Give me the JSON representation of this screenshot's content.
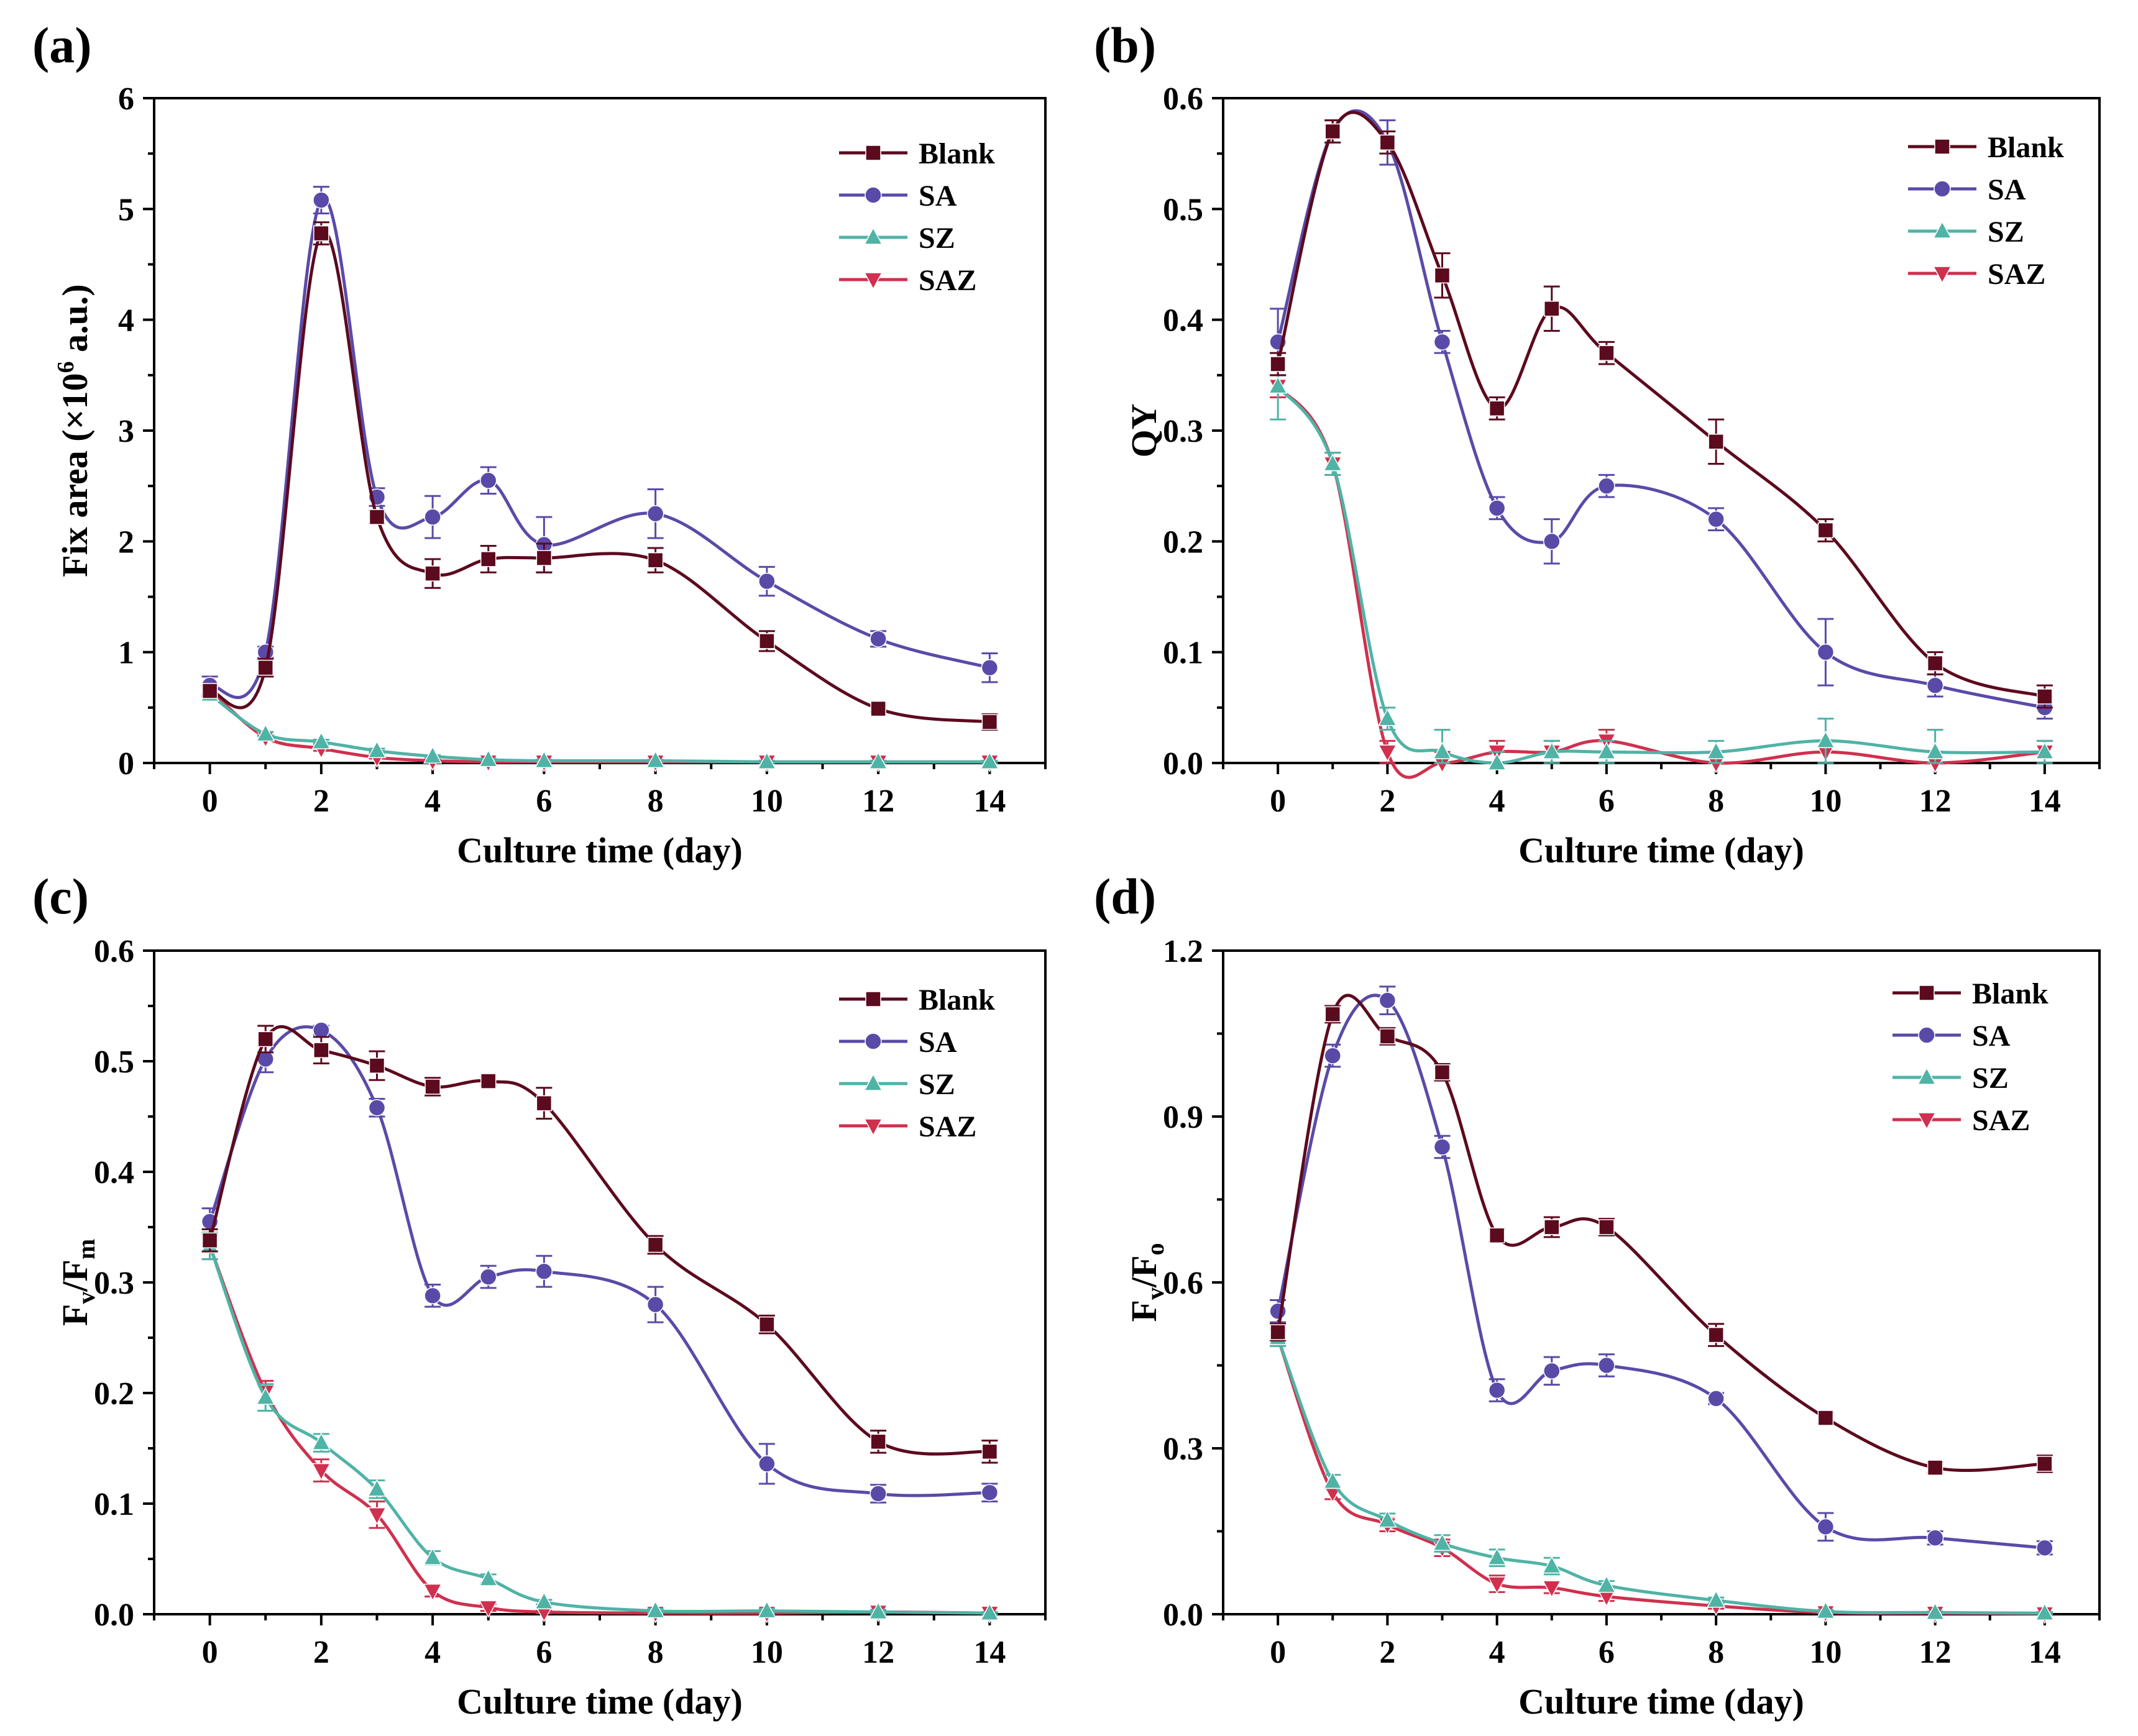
{
  "figure": {
    "colors": {
      "Blank": "#5c0a1e",
      "SA": "#5a4aa8",
      "SZ": "#4fb3a6",
      "SAZ": "#d0304e"
    },
    "markers": {
      "Blank": "square",
      "SA": "circle",
      "SZ": "triangle-up",
      "SAZ": "triangle-down"
    }
  },
  "chart_data": [
    {
      "panel": "(a)",
      "type": "line",
      "xlabel": "Culture time (day)",
      "ylabel_main": "Fix area (×10",
      "ylabel_sup": "6",
      "ylabel_tail": " a.u.)",
      "xlim": [
        -1,
        15
      ],
      "ylim": [
        0,
        6
      ],
      "xticks": [
        0,
        2,
        4,
        6,
        8,
        10,
        12,
        14
      ],
      "yticks": [
        0,
        1,
        2,
        3,
        4,
        5,
        6
      ],
      "ytick_labels": [
        "0",
        "1",
        "2",
        "3",
        "4",
        "5",
        "6"
      ],
      "x": [
        0,
        1,
        2,
        3,
        4,
        5,
        6,
        8,
        10,
        12,
        14
      ],
      "legend": [
        "Blank",
        "SA",
        "SZ",
        "SAZ"
      ],
      "series": [
        {
          "name": "Blank",
          "values": [
            0.65,
            0.86,
            4.78,
            2.22,
            1.71,
            1.84,
            1.85,
            1.83,
            1.1,
            0.49,
            0.37
          ],
          "errors": [
            0.05,
            0.08,
            0.1,
            0.06,
            0.13,
            0.12,
            0.13,
            0.11,
            0.09,
            0.03,
            0.07
          ]
        },
        {
          "name": "SA",
          "values": [
            0.7,
            1.0,
            5.08,
            2.4,
            2.22,
            2.55,
            1.97,
            2.25,
            1.64,
            1.12,
            0.86
          ],
          "errors": [
            0.08,
            0.05,
            0.12,
            0.08,
            0.19,
            0.12,
            0.25,
            0.22,
            0.13,
            0.07,
            0.13
          ]
        },
        {
          "name": "SZ",
          "values": [
            0.62,
            0.26,
            0.19,
            0.11,
            0.06,
            0.03,
            0.02,
            0.02,
            0.01,
            0.01,
            0.01
          ],
          "errors": [
            0.05,
            0.02,
            0.02,
            0.02,
            0.01,
            0.01,
            0.01,
            0.01,
            0.01,
            0.01,
            0.01
          ]
        },
        {
          "name": "SAZ",
          "values": [
            0.66,
            0.23,
            0.13,
            0.05,
            0.02,
            0.01,
            0.01,
            0.01,
            0.01,
            0.01,
            0.01
          ],
          "errors": [
            0.04,
            0.02,
            0.02,
            0.01,
            0.01,
            0.01,
            0.01,
            0.01,
            0.01,
            0.01,
            0.01
          ]
        }
      ]
    },
    {
      "panel": "(b)",
      "type": "line",
      "xlabel": "Culture time (day)",
      "ylabel_main": "QY",
      "ylabel_sup": "",
      "ylabel_tail": "",
      "xlim": [
        -1,
        15
      ],
      "ylim": [
        0,
        0.6
      ],
      "xticks": [
        0,
        2,
        4,
        6,
        8,
        10,
        12,
        14
      ],
      "yticks": [
        0,
        0.1,
        0.2,
        0.3,
        0.4,
        0.5,
        0.6
      ],
      "ytick_labels": [
        "0.0",
        "0.1",
        "0.2",
        "0.3",
        "0.4",
        "0.5",
        "0.6"
      ],
      "x": [
        0,
        1,
        2,
        3,
        4,
        5,
        6,
        8,
        10,
        12,
        14
      ],
      "legend": [
        "Blank",
        "SA",
        "SZ",
        "SAZ"
      ],
      "series": [
        {
          "name": "Blank",
          "values": [
            0.36,
            0.57,
            0.56,
            0.44,
            0.32,
            0.41,
            0.37,
            0.29,
            0.21,
            0.09,
            0.06
          ],
          "errors": [
            0.01,
            0.01,
            0.01,
            0.02,
            0.01,
            0.02,
            0.01,
            0.02,
            0.01,
            0.01,
            0.01
          ]
        },
        {
          "name": "SA",
          "values": [
            0.38,
            0.57,
            0.56,
            0.38,
            0.23,
            0.2,
            0.25,
            0.22,
            0.1,
            0.07,
            0.05
          ],
          "errors": [
            0.03,
            0.01,
            0.02,
            0.01,
            0.01,
            0.02,
            0.01,
            0.01,
            0.03,
            0.01,
            0.01
          ]
        },
        {
          "name": "SZ",
          "values": [
            0.34,
            0.27,
            0.04,
            0.01,
            0.0,
            0.01,
            0.01,
            0.01,
            0.02,
            0.01,
            0.01
          ],
          "errors": [
            0.03,
            0.01,
            0.01,
            0.02,
            0.01,
            0.01,
            0.01,
            0.01,
            0.02,
            0.02,
            0.01
          ]
        },
        {
          "name": "SAZ",
          "values": [
            0.34,
            0.27,
            0.01,
            0.0,
            0.01,
            0.01,
            0.02,
            0.0,
            0.01,
            0.0,
            0.01
          ],
          "errors": [
            0.01,
            0.01,
            0.01,
            0.01,
            0.01,
            0.01,
            0.01,
            0.01,
            0.01,
            0.01,
            0.01
          ]
        }
      ]
    },
    {
      "panel": "(c)",
      "type": "line",
      "xlabel": "Culture time (day)",
      "ylabel_main": "F",
      "ylabel_sub1": "v",
      "ylabel_mid": "/F",
      "ylabel_sub2": "m",
      "xlim": [
        -1,
        15
      ],
      "ylim": [
        0,
        0.6
      ],
      "xticks": [
        0,
        2,
        4,
        6,
        8,
        10,
        12,
        14
      ],
      "yticks": [
        0,
        0.1,
        0.2,
        0.3,
        0.4,
        0.5,
        0.6
      ],
      "ytick_labels": [
        "0.0",
        "0.1",
        "0.2",
        "0.3",
        "0.4",
        "0.5",
        "0.6"
      ],
      "x": [
        0,
        1,
        2,
        3,
        4,
        5,
        6,
        8,
        10,
        12,
        14
      ],
      "legend": [
        "Blank",
        "SA",
        "SZ",
        "SAZ"
      ],
      "series": [
        {
          "name": "Blank",
          "values": [
            0.338,
            0.52,
            0.51,
            0.496,
            0.477,
            0.482,
            0.462,
            0.334,
            0.262,
            0.156,
            0.147
          ],
          "errors": [
            0.01,
            0.012,
            0.012,
            0.013,
            0.008,
            0.004,
            0.014,
            0.008,
            0.008,
            0.01,
            0.01
          ]
        },
        {
          "name": "SA",
          "values": [
            0.355,
            0.502,
            0.528,
            0.458,
            0.288,
            0.305,
            0.31,
            0.28,
            0.136,
            0.109,
            0.11
          ],
          "errors": [
            0.012,
            0.012,
            0.004,
            0.008,
            0.01,
            0.01,
            0.014,
            0.016,
            0.018,
            0.008,
            0.008
          ]
        },
        {
          "name": "SZ",
          "values": [
            0.333,
            0.196,
            0.155,
            0.113,
            0.051,
            0.032,
            0.011,
            0.003,
            0.003,
            0.002,
            0.001
          ],
          "errors": [
            0.012,
            0.012,
            0.008,
            0.008,
            0.006,
            0.004,
            0.002,
            0.002,
            0.002,
            0.002,
            0.001
          ]
        },
        {
          "name": "SAZ",
          "values": [
            0.333,
            0.201,
            0.13,
            0.09,
            0.021,
            0.006,
            0.002,
            0.001,
            0.001,
            0.002,
            0.001
          ],
          "errors": [
            0.012,
            0.01,
            0.01,
            0.012,
            0.005,
            0.003,
            0.001,
            0.001,
            0.001,
            0.001,
            0.001
          ]
        }
      ]
    },
    {
      "panel": "(d)",
      "type": "line",
      "xlabel": "Culture time (day)",
      "ylabel_main": "F",
      "ylabel_sub1": "v",
      "ylabel_mid": "/F",
      "ylabel_sub2": "o",
      "xlim": [
        -1,
        15
      ],
      "ylim": [
        0,
        1.2
      ],
      "xticks": [
        0,
        2,
        4,
        6,
        8,
        10,
        12,
        14
      ],
      "yticks": [
        0,
        0.3,
        0.6,
        0.9,
        1.2
      ],
      "ytick_labels": [
        "0.0",
        "0.3",
        "0.6",
        "0.9",
        "1.2"
      ],
      "x": [
        0,
        1,
        2,
        3,
        4,
        5,
        6,
        8,
        10,
        12,
        14
      ],
      "legend": [
        "Blank",
        "SA",
        "SZ",
        "SAZ"
      ],
      "series": [
        {
          "name": "Blank",
          "values": [
            0.51,
            1.085,
            1.045,
            0.98,
            0.685,
            0.7,
            0.7,
            0.505,
            0.355,
            0.265,
            0.272
          ],
          "errors": [
            0.015,
            0.015,
            0.015,
            0.015,
            0.012,
            0.018,
            0.015,
            0.02,
            0.01,
            0.01,
            0.015
          ]
        },
        {
          "name": "SA",
          "values": [
            0.548,
            1.01,
            1.11,
            0.845,
            0.405,
            0.44,
            0.45,
            0.39,
            0.158,
            0.138,
            0.12
          ],
          "errors": [
            0.02,
            0.02,
            0.025,
            0.02,
            0.02,
            0.025,
            0.02,
            0.01,
            0.025,
            0.012,
            0.012
          ]
        },
        {
          "name": "SZ",
          "values": [
            0.5,
            0.24,
            0.17,
            0.128,
            0.102,
            0.087,
            0.052,
            0.025,
            0.005,
            0.003,
            0.002
          ],
          "errors": [
            0.015,
            0.012,
            0.012,
            0.015,
            0.015,
            0.015,
            0.008,
            0.005,
            0.003,
            0.002,
            0.002
          ]
        },
        {
          "name": "SAZ",
          "values": [
            0.5,
            0.22,
            0.162,
            0.12,
            0.055,
            0.048,
            0.032,
            0.015,
            0.003,
            0.002,
            0.001
          ],
          "errors": [
            0.015,
            0.012,
            0.012,
            0.015,
            0.015,
            0.01,
            0.008,
            0.005,
            0.002,
            0.001,
            0.001
          ]
        }
      ]
    }
  ]
}
